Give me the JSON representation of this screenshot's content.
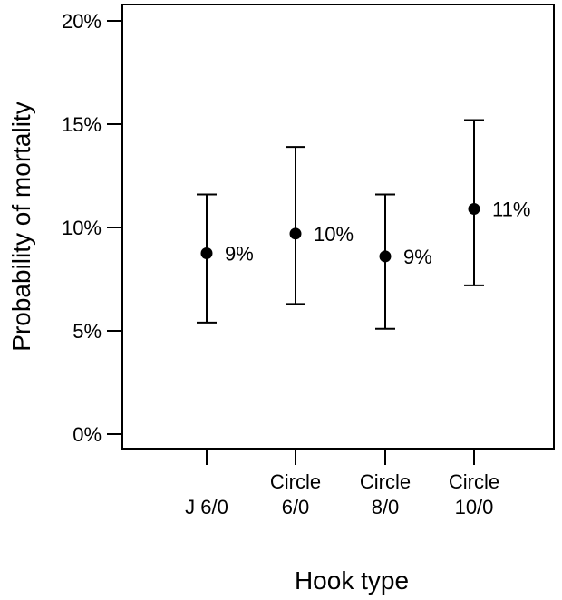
{
  "chart_data": {
    "type": "scatter",
    "xlabel": "Hook type",
    "ylabel": "Probability of mortality",
    "categories": [
      [
        "J 6/0"
      ],
      [
        "Circle",
        "6/0"
      ],
      [
        "Circle",
        "8/0"
      ],
      [
        "Circle",
        "10/0"
      ]
    ],
    "values": [
      8.75,
      9.7,
      8.6,
      10.9
    ],
    "lower": [
      5.4,
      6.3,
      5.1,
      7.2
    ],
    "upper": [
      11.6,
      13.9,
      11.6,
      15.2
    ],
    "labels": [
      "9%",
      "10%",
      "9%",
      "11%"
    ],
    "yticks": [
      0,
      5,
      10,
      15,
      20
    ],
    "ytick_labels": [
      "0%",
      "5%",
      "10%",
      "15%",
      "20%"
    ],
    "ylim": [
      0,
      20
    ],
    "grid": false,
    "legend": "none"
  }
}
